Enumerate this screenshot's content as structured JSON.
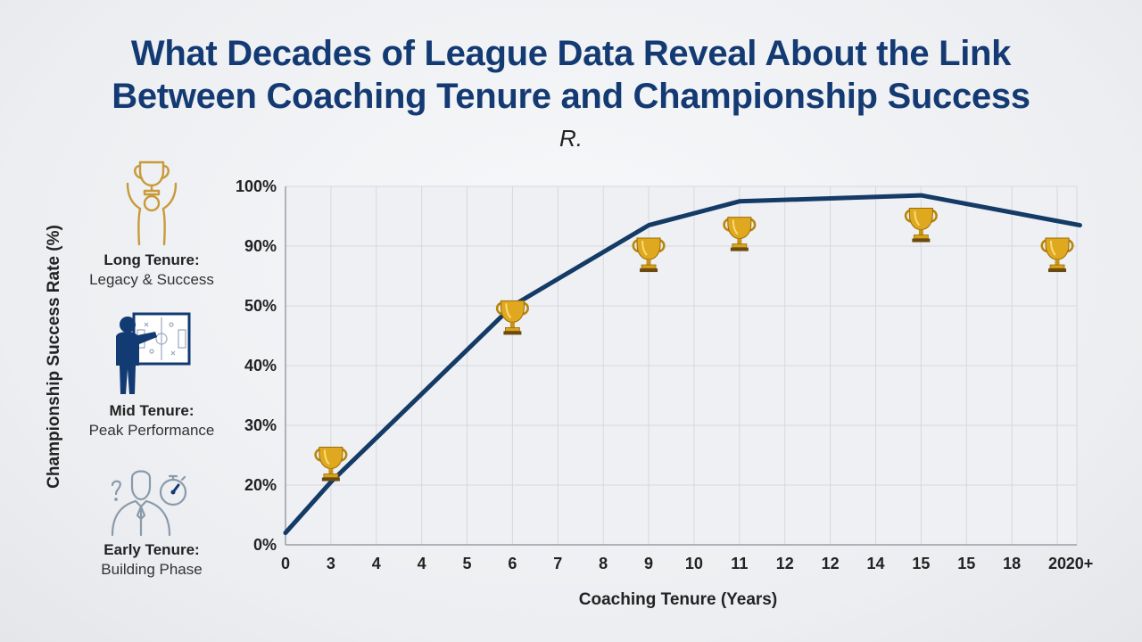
{
  "title_line1": "What Decades of League Data Reveal About the Link",
  "title_line2": "Between Coaching Tenure and Championship Success",
  "subtitle": "R.",
  "legend": [
    {
      "title": "Long Tenure:",
      "desc": "Legacy & Success",
      "icon": "trophy-raised-person-icon"
    },
    {
      "title": "Mid Tenure:",
      "desc": "Peak Performance",
      "icon": "coach-whiteboard-icon"
    },
    {
      "title": "Early Tenure:",
      "desc": "Building Phase",
      "icon": "uncertain-person-stopwatch-icon"
    }
  ],
  "chart_data": {
    "type": "line",
    "title": "What Decades of League Data Reveal About the Link Between Coaching Tenure and Championship Success",
    "xlabel": "Coaching Tenure (Years)",
    "ylabel": "Championship Success Rate (%)",
    "x_tick_labels": [
      "0",
      "3",
      "4",
      "4",
      "5",
      "6",
      "7",
      "8",
      "9",
      "10",
      "11",
      "12",
      "12",
      "14",
      "15",
      "15",
      "18",
      "20",
      "20+"
    ],
    "y_tick_labels": [
      "0%",
      "20%",
      "30%",
      "40%",
      "50%",
      "90%",
      "100%"
    ],
    "series": [
      {
        "points": [
          {
            "x_index": 0,
            "y_level": 0.2
          },
          {
            "x_index": 1,
            "y_level": 1.05
          },
          {
            "x_index": 5,
            "y_level": 4.0
          },
          {
            "x_index": 8,
            "y_level": 5.35
          },
          {
            "x_index": 10,
            "y_level": 5.75
          },
          {
            "x_index": 14,
            "y_level": 5.85
          },
          {
            "x_index": 17.5,
            "y_level": 5.35
          }
        ]
      }
    ],
    "trophy_markers": [
      {
        "x_index": 1,
        "y_level": 1.35
      },
      {
        "x_index": 5,
        "y_level": 3.8
      },
      {
        "x_index": 8,
        "y_level": 4.85
      },
      {
        "x_index": 10,
        "y_level": 5.2
      },
      {
        "x_index": 14,
        "y_level": 5.35
      },
      {
        "x_index": 17,
        "y_level": 4.85
      }
    ],
    "grid": true,
    "line_color": "#143a66",
    "gridline_color": "#d6d8dc"
  },
  "colors": {
    "title": "#143a73",
    "line": "#143a66",
    "trophy_gold": "#d9a21b",
    "icon_gold": "#c89a3a",
    "icon_navy": "#123a73",
    "icon_gray": "#8a9aaa"
  }
}
